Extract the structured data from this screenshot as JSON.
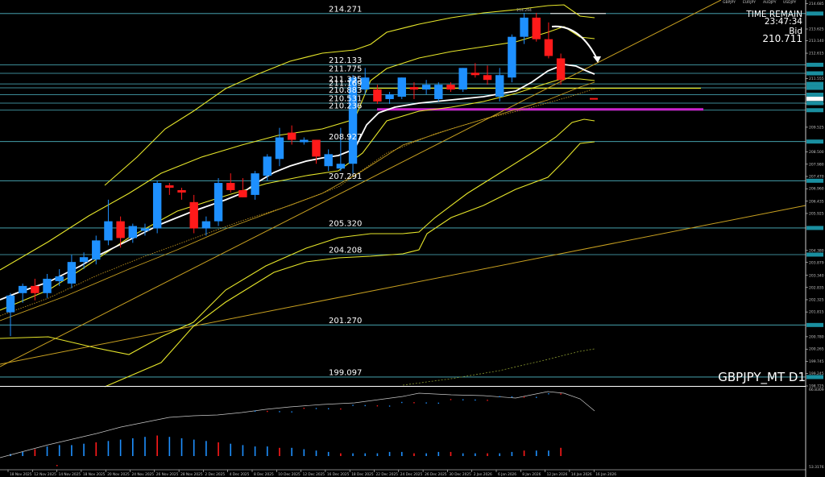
{
  "header": {
    "symbol_tabs": [
      "GBPJPY",
      "EURJPY",
      "AUDJPY",
      "USDJPY"
    ],
    "time_remain_label": "TIME REMAIN",
    "time_remain": "23:47:34",
    "bid_label": "Bid",
    "bid": "210.711",
    "symbol_timeframe": "GBPJPY_MT D1"
  },
  "colors": {
    "bull": "#1e90ff",
    "bear": "#ff1a1a",
    "level_line": "#4fb7c6",
    "band": "#e6e62a",
    "ma_white": "#ffffff",
    "magenta": "#cc22cc",
    "trend": "#c8a020",
    "price_tag": "#1a8fa0"
  },
  "chart_data": {
    "type": "candlestick",
    "x_tick_labels": [
      "18 Nov 2025",
      "12 Nov 2025",
      "14 Nov 2025",
      "18 Nov 2025",
      "20 Nov 2025",
      "24 Nov 2025",
      "26 Nov 2025",
      "28 Nov 2025",
      "2 Dec 2025",
      "4 Dec 2025",
      "8 Dec 2025",
      "10 Dec 2025",
      "12 Dec 2025",
      "16 Dec 2025",
      "18 Dec 2025",
      "22 Dec 2025",
      "24 Dec 2025",
      "26 Dec 2025",
      "30 Dec 2025",
      "2 Jan 2026",
      "6 Jan 2026",
      "8 Jan 2026",
      "12 Jan 2026",
      "14 Jan 2026",
      "16 Jan 2026"
    ],
    "y_axis_labels": [
      "214.685",
      "213.625",
      "213.140",
      "212.615",
      "211.555",
      "210.500",
      "209.525",
      "208.500",
      "207.980",
      "207.470",
      "206.960",
      "206.435",
      "205.925",
      "204.380",
      "203.879",
      "203.340",
      "202.835",
      "202.325",
      "201.815",
      "200.780",
      "200.265",
      "199.745",
      "199.245",
      "198.725"
    ],
    "ylim": [
      198.725,
      214.685
    ],
    "price_levels": [
      "214.271",
      "212.133",
      "211.775",
      "211.335",
      "211.169",
      "210.883",
      "210.531",
      "210.236",
      "208.927",
      "207.291",
      "205.320",
      "204.208",
      "201.270",
      "199.097"
    ],
    "high_label": "214.294",
    "candles": [
      {
        "o": 201.8,
        "h": 202.6,
        "l": 200.8,
        "c": 202.5
      },
      {
        "o": 202.6,
        "h": 203.0,
        "l": 202.2,
        "c": 202.9
      },
      {
        "o": 202.9,
        "h": 203.2,
        "l": 202.3,
        "c": 202.6
      },
      {
        "o": 202.6,
        "h": 203.4,
        "l": 202.4,
        "c": 203.2
      },
      {
        "o": 203.1,
        "h": 203.6,
        "l": 202.9,
        "c": 203.3
      },
      {
        "o": 203.0,
        "h": 204.2,
        "l": 202.8,
        "c": 203.9
      },
      {
        "o": 203.9,
        "h": 204.3,
        "l": 203.6,
        "c": 204.1
      },
      {
        "o": 204.0,
        "h": 205.0,
        "l": 203.8,
        "c": 204.8
      },
      {
        "o": 204.8,
        "h": 206.5,
        "l": 204.6,
        "c": 205.6
      },
      {
        "o": 205.6,
        "h": 205.8,
        "l": 204.5,
        "c": 204.9
      },
      {
        "o": 204.9,
        "h": 205.5,
        "l": 204.7,
        "c": 205.4
      },
      {
        "o": 205.2,
        "h": 205.5,
        "l": 205.0,
        "c": 205.3
      },
      {
        "o": 205.3,
        "h": 207.3,
        "l": 205.1,
        "c": 207.2
      },
      {
        "o": 207.1,
        "h": 207.2,
        "l": 206.7,
        "c": 207.0
      },
      {
        "o": 206.9,
        "h": 207.0,
        "l": 206.5,
        "c": 206.8
      },
      {
        "o": 206.4,
        "h": 206.7,
        "l": 205.1,
        "c": 205.3
      },
      {
        "o": 205.3,
        "h": 205.8,
        "l": 205.0,
        "c": 205.6
      },
      {
        "o": 205.6,
        "h": 207.4,
        "l": 205.4,
        "c": 207.2
      },
      {
        "o": 207.2,
        "h": 207.6,
        "l": 206.8,
        "c": 206.9
      },
      {
        "o": 206.9,
        "h": 207.4,
        "l": 206.6,
        "c": 206.6
      },
      {
        "o": 206.7,
        "h": 207.7,
        "l": 206.5,
        "c": 207.6
      },
      {
        "o": 207.5,
        "h": 208.4,
        "l": 207.3,
        "c": 208.3
      },
      {
        "o": 208.2,
        "h": 209.5,
        "l": 207.9,
        "c": 209.1
      },
      {
        "o": 209.3,
        "h": 209.6,
        "l": 208.8,
        "c": 209.0
      },
      {
        "o": 208.9,
        "h": 209.1,
        "l": 208.8,
        "c": 209.0
      },
      {
        "o": 209.0,
        "h": 209.0,
        "l": 208.0,
        "c": 208.3
      },
      {
        "o": 207.9,
        "h": 208.6,
        "l": 207.7,
        "c": 208.4
      },
      {
        "o": 207.8,
        "h": 209.5,
        "l": 207.7,
        "c": 208.0
      },
      {
        "o": 208.0,
        "h": 211.7,
        "l": 207.6,
        "c": 211.6
      },
      {
        "o": 211.1,
        "h": 212.0,
        "l": 210.9,
        "c": 211.6
      },
      {
        "o": 211.1,
        "h": 211.3,
        "l": 210.5,
        "c": 210.6
      },
      {
        "o": 210.7,
        "h": 211.0,
        "l": 210.5,
        "c": 210.9
      },
      {
        "o": 210.8,
        "h": 211.6,
        "l": 210.7,
        "c": 211.6
      },
      {
        "o": 211.2,
        "h": 211.4,
        "l": 210.7,
        "c": 211.1
      },
      {
        "o": 211.1,
        "h": 211.5,
        "l": 210.9,
        "c": 211.3
      },
      {
        "o": 210.7,
        "h": 211.4,
        "l": 210.6,
        "c": 211.3
      },
      {
        "o": 211.3,
        "h": 211.4,
        "l": 211.0,
        "c": 211.1
      },
      {
        "o": 211.1,
        "h": 212.0,
        "l": 211.0,
        "c": 212.0
      },
      {
        "o": 211.8,
        "h": 212.2,
        "l": 211.6,
        "c": 211.7
      },
      {
        "o": 211.7,
        "h": 212.1,
        "l": 211.3,
        "c": 211.5
      },
      {
        "o": 210.8,
        "h": 212.0,
        "l": 210.6,
        "c": 211.7
      },
      {
        "o": 211.6,
        "h": 213.4,
        "l": 211.4,
        "c": 213.3
      },
      {
        "o": 213.3,
        "h": 214.3,
        "l": 213.0,
        "c": 214.1
      },
      {
        "o": 214.1,
        "h": 214.3,
        "l": 213.1,
        "c": 213.2
      },
      {
        "o": 213.2,
        "h": 213.9,
        "l": 212.4,
        "c": 212.5
      },
      {
        "o": 212.4,
        "h": 212.6,
        "l": 211.3,
        "c": 211.5
      }
    ],
    "oscillator_labels": {
      "top": "66.8309",
      "bottom": "53.3176"
    }
  }
}
